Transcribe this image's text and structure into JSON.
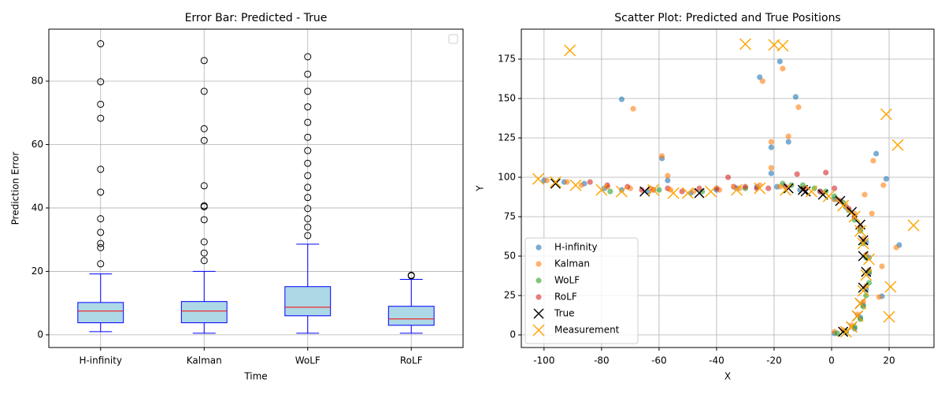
{
  "chart_data": [
    {
      "type": "box",
      "title": "Error Bar: Predicted - True",
      "x_label": "Time",
      "y_label": "Prediction Error",
      "categories": [
        "H-infinity",
        "Kalman",
        "WoLF",
        "RoLF"
      ],
      "box_color": "#add8e6",
      "edge_color": "#0000ff",
      "median_color": "#ff0000",
      "boxes": [
        {
          "whislo": 1,
          "q1": 3.8,
          "med": 7.5,
          "q3": 10.2,
          "whishi": 19.2,
          "fliers": [
            22.4,
            27.5,
            28.8,
            32.3,
            36.6,
            45,
            52.2,
            68.3,
            72.7,
            79.8,
            91.8
          ]
        },
        {
          "whislo": 0.5,
          "q1": 3.8,
          "med": 7.5,
          "q3": 10.5,
          "whishi": 20,
          "fliers": [
            23.4,
            25.8,
            29.3,
            36.3,
            40.4,
            40.7,
            47,
            61.3,
            65,
            76.8,
            86.5
          ]
        },
        {
          "whislo": 0.5,
          "q1": 6,
          "med": 8.7,
          "q3": 15.2,
          "whishi": 28.6,
          "fliers": [
            31.3,
            34,
            36.6,
            39.8,
            43.3,
            46.5,
            50.2,
            54.1,
            58.1,
            62.3,
            67,
            71.9,
            76.8,
            82.2,
            87.7
          ]
        },
        {
          "whislo": 0.5,
          "q1": 3,
          "med": 5,
          "q3": 9,
          "whishi": 17.5,
          "fliers": [
            18.6,
            18.8
          ]
        }
      ],
      "ylim": [
        -4,
        96.4
      ],
      "yticks": [
        0,
        20,
        40,
        60,
        80
      ],
      "grid": true,
      "legend": "upper right"
    },
    {
      "type": "scatter",
      "title": "Scatter Plot: Predicted and True Positions",
      "x_label": "X",
      "y_label": "Y",
      "xlim": [
        -107.9,
        35.6
      ],
      "xticks": [
        -100,
        -80,
        -60,
        -40,
        -20,
        0,
        20
      ],
      "ylim": [
        -8,
        194
      ],
      "yticks": [
        0,
        25,
        50,
        75,
        100,
        125,
        150,
        175
      ],
      "grid": true,
      "legend": "lower left",
      "series": [
        {
          "name": "H-infinity",
          "color": "#1f77b4",
          "marker": "o",
          "x": [
            -100,
            -93,
            -86,
            -79,
            -73,
            -64,
            -57,
            -49,
            -40,
            -33,
            -26,
            -19,
            -11,
            -4,
            1,
            5,
            8,
            10,
            12,
            13,
            13,
            12,
            11,
            10,
            8,
            5,
            1,
            -73,
            -59,
            -25,
            -18,
            -12.5,
            -15,
            -21,
            -21,
            15.5,
            19,
            23.5,
            17.5
          ],
          "y": [
            98,
            97,
            96,
            93,
            92,
            91,
            98,
            90,
            92,
            93,
            94,
            94,
            92,
            91,
            86,
            81,
            75,
            67,
            59,
            49,
            39,
            29,
            19,
            11,
            4,
            2,
            1,
            149.5,
            112,
            163.5,
            173.5,
            151,
            122.5,
            119,
            102.5,
            115,
            99,
            57,
            24.5
          ]
        },
        {
          "name": "Kalman",
          "color": "#ff7f0e",
          "marker": "o",
          "x": [
            -99,
            -92,
            -87,
            -78,
            -70,
            -63,
            -56,
            -48,
            -39,
            -32,
            -25,
            -18,
            -10,
            -3,
            2,
            5,
            8,
            10,
            11,
            12,
            13,
            12,
            11,
            9,
            7,
            4,
            1,
            -69,
            -24,
            -17,
            -11.5,
            -15,
            -21,
            -59,
            -57,
            -21,
            14.5,
            18,
            11.5,
            14,
            22.5,
            17.5,
            16.5
          ],
          "y": [
            98,
            97,
            95,
            94,
            93,
            93,
            92,
            91,
            92,
            93,
            95,
            94,
            93,
            90,
            86,
            82,
            77,
            69,
            61,
            51,
            41,
            31,
            21,
            13,
            6,
            3,
            2,
            143.5,
            161,
            169,
            144.5,
            126,
            122.5,
            113.5,
            101,
            106,
            110.5,
            95,
            89,
            77,
            55.5,
            43.5,
            24
          ]
        },
        {
          "name": "WoLF",
          "color": "#2ca02c",
          "marker": "o",
          "x": [
            -77,
            -60,
            -45,
            -30,
            -17,
            -14,
            -10,
            -6,
            -2,
            1,
            4,
            6,
            8,
            10,
            11,
            12,
            13,
            13,
            12,
            11,
            10,
            8,
            5,
            2
          ],
          "y": [
            91,
            92,
            91,
            93,
            96,
            95,
            95,
            93,
            91,
            88,
            84,
            79,
            73,
            66,
            58,
            49,
            40,
            33,
            25,
            18,
            10,
            5,
            2,
            1
          ]
        },
        {
          "name": "RoLF",
          "color": "#d62728",
          "marker": "o",
          "x": [
            -84,
            -78,
            -71,
            -66,
            -62,
            -57,
            -52,
            -46,
            -40,
            -34,
            -30,
            -26,
            -22,
            -16,
            -9,
            -4,
            3,
            6,
            8,
            -36,
            -12,
            -2,
            1
          ],
          "y": [
            97,
            95,
            94,
            92,
            92,
            93,
            91,
            93,
            93,
            94,
            94,
            93,
            93,
            94,
            93,
            91,
            85,
            80,
            75,
            100,
            102,
            103,
            93
          ]
        },
        {
          "name": "True",
          "color": "#000000",
          "marker": "x",
          "x": [
            -96,
            -65,
            -46,
            -15,
            -10,
            -9,
            -3,
            3,
            7,
            10,
            11,
            11,
            12,
            11,
            10,
            9,
            7,
            4
          ],
          "y": [
            96,
            91,
            90,
            93,
            92,
            91,
            89,
            85,
            78,
            70,
            60,
            50,
            40,
            30,
            20,
            12,
            5,
            2
          ]
        },
        {
          "name": "Measurement",
          "color": "#ffa500",
          "marker": "x",
          "x": [
            -102,
            -96,
            -89,
            -80,
            -73,
            -62,
            -55,
            -50,
            -42,
            -33,
            -25,
            -16,
            -7,
            -1,
            4,
            8,
            10,
            11,
            13,
            12,
            11,
            10,
            9,
            7,
            5,
            -91,
            -30,
            -20,
            -17,
            19,
            23,
            28.5,
            20.5,
            20
          ],
          "y": [
            99,
            97,
            95,
            92,
            91,
            92,
            90,
            90,
            91,
            92,
            93,
            92,
            91,
            88,
            82,
            75,
            66,
            58,
            48,
            38,
            28,
            20,
            12,
            5,
            2,
            180.5,
            184.5,
            184,
            183.5,
            140,
            120.5,
            69.5,
            30.5,
            11.5
          ]
        }
      ]
    }
  ]
}
